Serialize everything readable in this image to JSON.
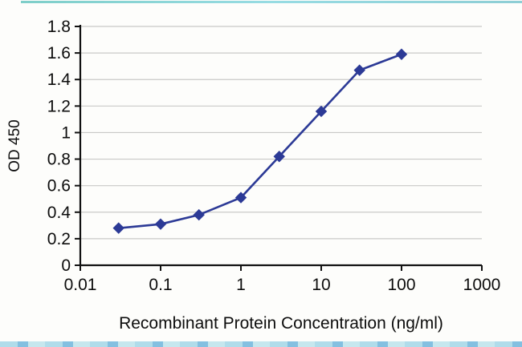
{
  "chart_data": {
    "type": "line",
    "title": "",
    "xlabel": "Recombinant Protein Concentration (ng/ml)",
    "ylabel": "OD 450",
    "x_scale": "log",
    "xlim": [
      0.01,
      1000
    ],
    "ylim": [
      0,
      1.8
    ],
    "x": [
      0.03,
      0.1,
      0.3,
      1,
      3,
      10,
      30,
      100
    ],
    "y": [
      0.28,
      0.31,
      0.38,
      0.51,
      0.82,
      1.16,
      1.47,
      1.59
    ],
    "xticks": {
      "values": [
        0.01,
        0.1,
        1,
        10,
        100,
        1000
      ],
      "labels": [
        "0.01",
        "0.1",
        "1",
        "10",
        "100",
        "1000"
      ]
    },
    "yticks": {
      "values": [
        0,
        0.2,
        0.4,
        0.6,
        0.8,
        1,
        1.2,
        1.4,
        1.6,
        1.8
      ],
      "labels": [
        "0",
        "0.2",
        "0.4",
        "0.6",
        "0.8",
        "1",
        "1.2",
        "1.4",
        "1.6",
        "1.8"
      ]
    },
    "grid": true,
    "legend": "none",
    "marker": "diamond",
    "series_color": "#2c3a96",
    "grid_color": "#c9c9c7",
    "axis_color": "#111111"
  }
}
